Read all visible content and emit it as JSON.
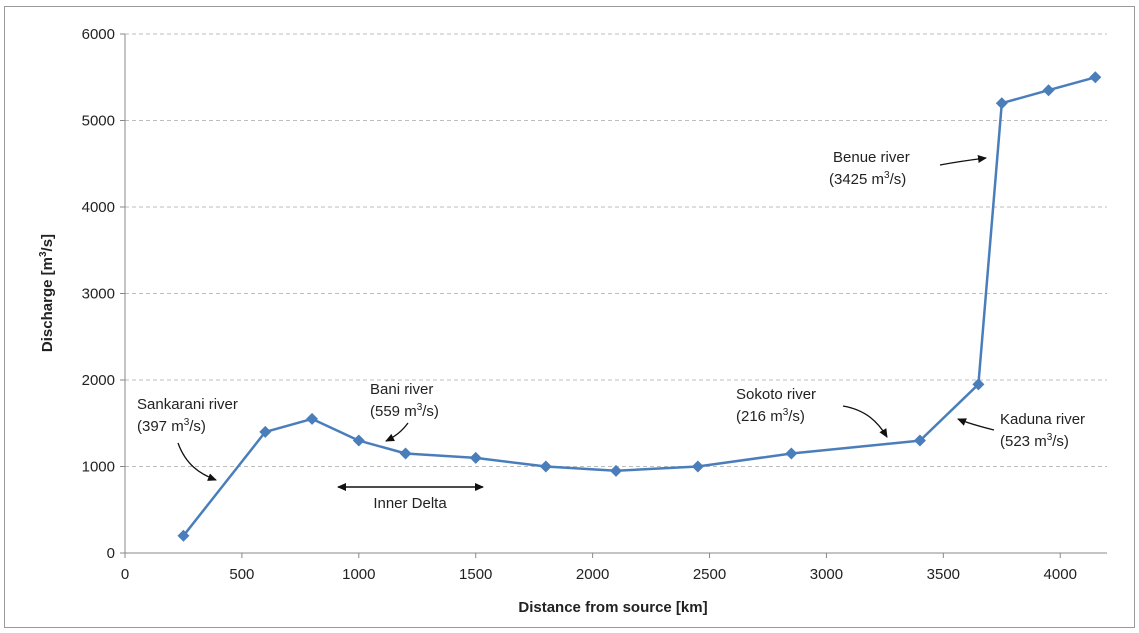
{
  "chart_data": {
    "type": "line",
    "title": "",
    "xlabel": "Distance from source [km]",
    "ylabel_parts": [
      "Discharge [m",
      "3",
      "/s]"
    ],
    "xlim": [
      0,
      4200
    ],
    "ylim": [
      0,
      6000
    ],
    "xticks": [
      "0",
      "500",
      "1000",
      "1500",
      "2000",
      "2500",
      "3000",
      "3500",
      "4000"
    ],
    "yticks": [
      "0",
      "1000",
      "2000",
      "3000",
      "4000",
      "5000",
      "6000"
    ],
    "grid": "horizontal dashed",
    "line_color": "#4a7ebb",
    "series": [
      {
        "x": [
          250,
          600,
          800,
          1000,
          1200,
          1500,
          1800,
          2100,
          2450,
          2850,
          3400,
          3650,
          3750,
          3950,
          4150
        ],
        "y": [
          200,
          1400,
          1550,
          1300,
          1150,
          1100,
          1000,
          950,
          1000,
          1150,
          1300,
          1950,
          5200,
          5350,
          5500
        ]
      }
    ],
    "annotations": {
      "sankarani": {
        "line1": "Sankarani river",
        "line2_pre": "(397 m",
        "sup": "3",
        "line2_post": "/s)"
      },
      "bani": {
        "line1": "Bani river",
        "line2_pre": "(559 m",
        "sup": "3",
        "line2_post": "/s)"
      },
      "inner_delta": {
        "label": "Inner Delta"
      },
      "sokoto": {
        "line1": "Sokoto river",
        "line2_pre": "(216 m",
        "sup": "3",
        "line2_post": "/s)"
      },
      "kaduna": {
        "line1": "Kaduna river",
        "line2_pre": "(523 m",
        "sup": "3",
        "line2_post": "/s)"
      },
      "benue": {
        "line1": "Benue river",
        "line2_pre": "(3425 m",
        "sup": "3",
        "line2_post": "/s)"
      }
    }
  }
}
